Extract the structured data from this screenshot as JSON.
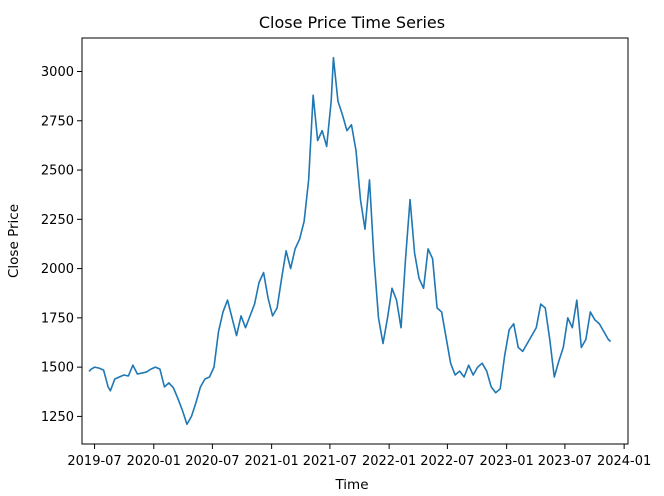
{
  "chart_data": {
    "type": "line",
    "title": "Close Price Time Series",
    "xlabel": "Time",
    "ylabel": "Close Price",
    "grid": false,
    "legend": "none",
    "line_color": "#1f77b4",
    "xlim": [
      "2019-05-23",
      "2024-01-13"
    ],
    "ylim": [
      1110,
      3170
    ],
    "x_ticks": [
      {
        "date": "2019-07-01",
        "label": "2019-07"
      },
      {
        "date": "2020-01-01",
        "label": "2020-01"
      },
      {
        "date": "2020-07-01",
        "label": "2020-07"
      },
      {
        "date": "2021-01-01",
        "label": "2021-01"
      },
      {
        "date": "2021-07-01",
        "label": "2021-07"
      },
      {
        "date": "2022-01-01",
        "label": "2022-01"
      },
      {
        "date": "2022-07-01",
        "label": "2022-07"
      },
      {
        "date": "2023-01-01",
        "label": "2023-01"
      },
      {
        "date": "2023-07-01",
        "label": "2023-07"
      },
      {
        "date": "2024-01-01",
        "label": "2024-01"
      }
    ],
    "y_ticks": [
      {
        "value": 1250,
        "label": "1250"
      },
      {
        "value": 1500,
        "label": "1500"
      },
      {
        "value": 1750,
        "label": "1750"
      },
      {
        "value": 2000,
        "label": "2000"
      },
      {
        "value": 2250,
        "label": "2250"
      },
      {
        "value": 2500,
        "label": "2500"
      },
      {
        "value": 2750,
        "label": "2750"
      },
      {
        "value": 3000,
        "label": "3000"
      }
    ],
    "series": [
      {
        "x": [
          "2019-06-14",
          "2019-06-21",
          "2019-07-01",
          "2019-07-15",
          "2019-07-29",
          "2019-08-12",
          "2019-08-19",
          "2019-09-02",
          "2019-09-16",
          "2019-09-30",
          "2019-10-14",
          "2019-10-28",
          "2019-11-11",
          "2019-11-25",
          "2019-12-09",
          "2019-12-23",
          "2020-01-06",
          "2020-01-20",
          "2020-02-03",
          "2020-02-17",
          "2020-03-02",
          "2020-03-16",
          "2020-03-30",
          "2020-04-13",
          "2020-04-27",
          "2020-05-11",
          "2020-05-25",
          "2020-06-08",
          "2020-06-22",
          "2020-07-06",
          "2020-07-20",
          "2020-08-03",
          "2020-08-17",
          "2020-08-31",
          "2020-09-14",
          "2020-09-28",
          "2020-10-12",
          "2020-10-26",
          "2020-11-09",
          "2020-11-23",
          "2020-12-07",
          "2020-12-21",
          "2021-01-04",
          "2021-01-18",
          "2021-02-01",
          "2021-02-15",
          "2021-03-01",
          "2021-03-15",
          "2021-03-29",
          "2021-04-12",
          "2021-04-26",
          "2021-05-10",
          "2021-05-24",
          "2021-06-07",
          "2021-06-21",
          "2021-07-05",
          "2021-07-12",
          "2021-07-26",
          "2021-08-09",
          "2021-08-23",
          "2021-09-06",
          "2021-09-20",
          "2021-10-04",
          "2021-10-18",
          "2021-11-01",
          "2021-11-15",
          "2021-11-29",
          "2021-12-13",
          "2021-12-27",
          "2022-01-10",
          "2022-01-24",
          "2022-02-07",
          "2022-02-21",
          "2022-03-07",
          "2022-03-21",
          "2022-04-04",
          "2022-04-18",
          "2022-05-02",
          "2022-05-16",
          "2022-05-30",
          "2022-06-13",
          "2022-06-27",
          "2022-07-11",
          "2022-07-25",
          "2022-08-08",
          "2022-08-22",
          "2022-09-05",
          "2022-09-19",
          "2022-10-03",
          "2022-10-17",
          "2022-10-31",
          "2022-11-14",
          "2022-11-28",
          "2022-12-12",
          "2022-12-26",
          "2023-01-09",
          "2023-01-23",
          "2023-02-06",
          "2023-02-20",
          "2023-03-06",
          "2023-03-20",
          "2023-04-03",
          "2023-04-17",
          "2023-05-01",
          "2023-05-15",
          "2023-05-29",
          "2023-06-12",
          "2023-06-26",
          "2023-07-10",
          "2023-07-24",
          "2023-08-07",
          "2023-08-21",
          "2023-09-04",
          "2023-09-18",
          "2023-10-02",
          "2023-10-16",
          "2023-10-30",
          "2023-11-13",
          "2023-11-20"
        ],
        "y": [
          1478,
          1490,
          1500,
          1495,
          1485,
          1400,
          1380,
          1440,
          1450,
          1460,
          1455,
          1510,
          1465,
          1470,
          1475,
          1490,
          1500,
          1490,
          1400,
          1420,
          1395,
          1340,
          1280,
          1210,
          1250,
          1320,
          1400,
          1440,
          1450,
          1500,
          1680,
          1780,
          1840,
          1750,
          1660,
          1760,
          1700,
          1760,
          1820,
          1930,
          1980,
          1850,
          1760,
          1800,
          1950,
          2090,
          2000,
          2100,
          2150,
          2240,
          2450,
          2880,
          2650,
          2700,
          2620,
          2850,
          3070,
          2850,
          2780,
          2700,
          2730,
          2600,
          2350,
          2200,
          2450,
          2050,
          1750,
          1620,
          1750,
          1900,
          1840,
          1700,
          2050,
          2350,
          2080,
          1950,
          1900,
          2100,
          2050,
          1800,
          1780,
          1650,
          1520,
          1460,
          1480,
          1450,
          1510,
          1460,
          1500,
          1520,
          1480,
          1400,
          1370,
          1390,
          1560,
          1690,
          1720,
          1600,
          1580,
          1620,
          1660,
          1700,
          1820,
          1800,
          1640,
          1450,
          1530,
          1600,
          1750,
          1700,
          1840,
          1600,
          1640,
          1780,
          1740,
          1720,
          1680,
          1640,
          1630
        ]
      }
    ]
  }
}
